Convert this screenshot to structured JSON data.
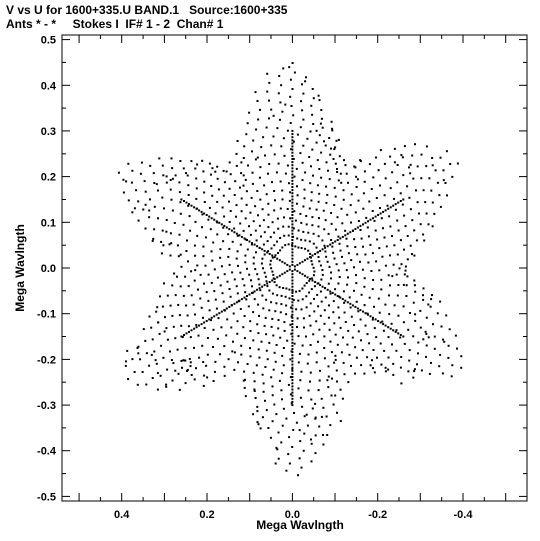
{
  "header": {
    "line1": "V vs U for 1600+335.U BAND.1   Source:1600+335",
    "line2": "Ants * - *     Stokes I  IF# 1 - 2  Chan# 1"
  },
  "chart_data": {
    "type": "scatter",
    "xlabel": "Mega Wavlngth",
    "ylabel": "Mega Wavlngth",
    "xlim": [
      0.54,
      -0.55
    ],
    "ylim": [
      -0.51,
      0.51
    ],
    "x_ticks": [
      "0.4",
      "0.2",
      "0.0",
      "-0.2",
      "-0.4"
    ],
    "x_tick_values": [
      0.4,
      0.2,
      0.0,
      -0.2,
      -0.4
    ],
    "y_ticks": [
      "0.5",
      "0.4",
      "0.3",
      "0.2",
      "0.1",
      "0.0",
      "-0.1",
      "-0.2",
      "-0.3",
      "-0.4",
      "-0.5"
    ],
    "y_tick_values": [
      0.5,
      0.4,
      0.3,
      0.2,
      0.1,
      0.0,
      -0.1,
      -0.2,
      -0.3,
      -0.4,
      -0.5
    ],
    "uv_arms": [
      {
        "u": 0.0,
        "v": 0.3
      },
      {
        "u": 0.26,
        "v": 0.15
      },
      {
        "u": 0.26,
        "v": -0.15
      },
      {
        "u": 0.0,
        "v": -0.3
      },
      {
        "u": -0.26,
        "v": -0.15
      },
      {
        "u": -0.26,
        "v": 0.15
      }
    ],
    "points": "uv-coverage sample points (u, v) in Mega Wavelength"
  }
}
